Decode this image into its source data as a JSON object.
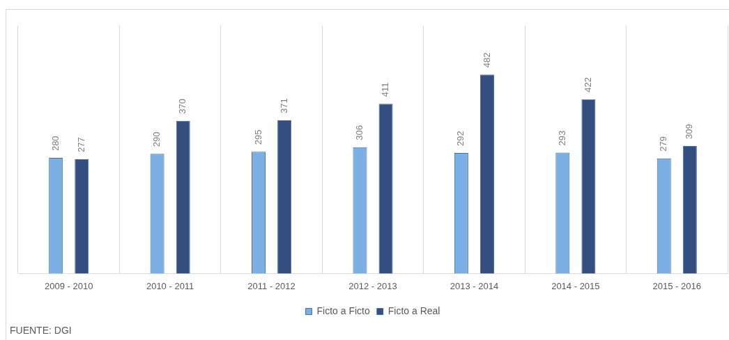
{
  "chart_data": {
    "type": "bar",
    "categories": [
      "2009 - 2010",
      "2010 - 2011",
      "2011 - 2012",
      "2012 - 2013",
      "2013 - 2014",
      "2014 - 2015",
      "2015 - 2016"
    ],
    "series": [
      {
        "name": "Ficto a Ficto",
        "color": "#7cafe3",
        "values": [
          280,
          290,
          295,
          306,
          292,
          293,
          279
        ]
      },
      {
        "name": "Ficto a Real",
        "color": "#344e80",
        "values": [
          277,
          370,
          371,
          411,
          482,
          422,
          309
        ]
      }
    ],
    "data_labels": true,
    "grid": "x",
    "legend": "bottom",
    "tick_labels": "x",
    "annotations": [
      "FUENTE: DGI"
    ]
  }
}
